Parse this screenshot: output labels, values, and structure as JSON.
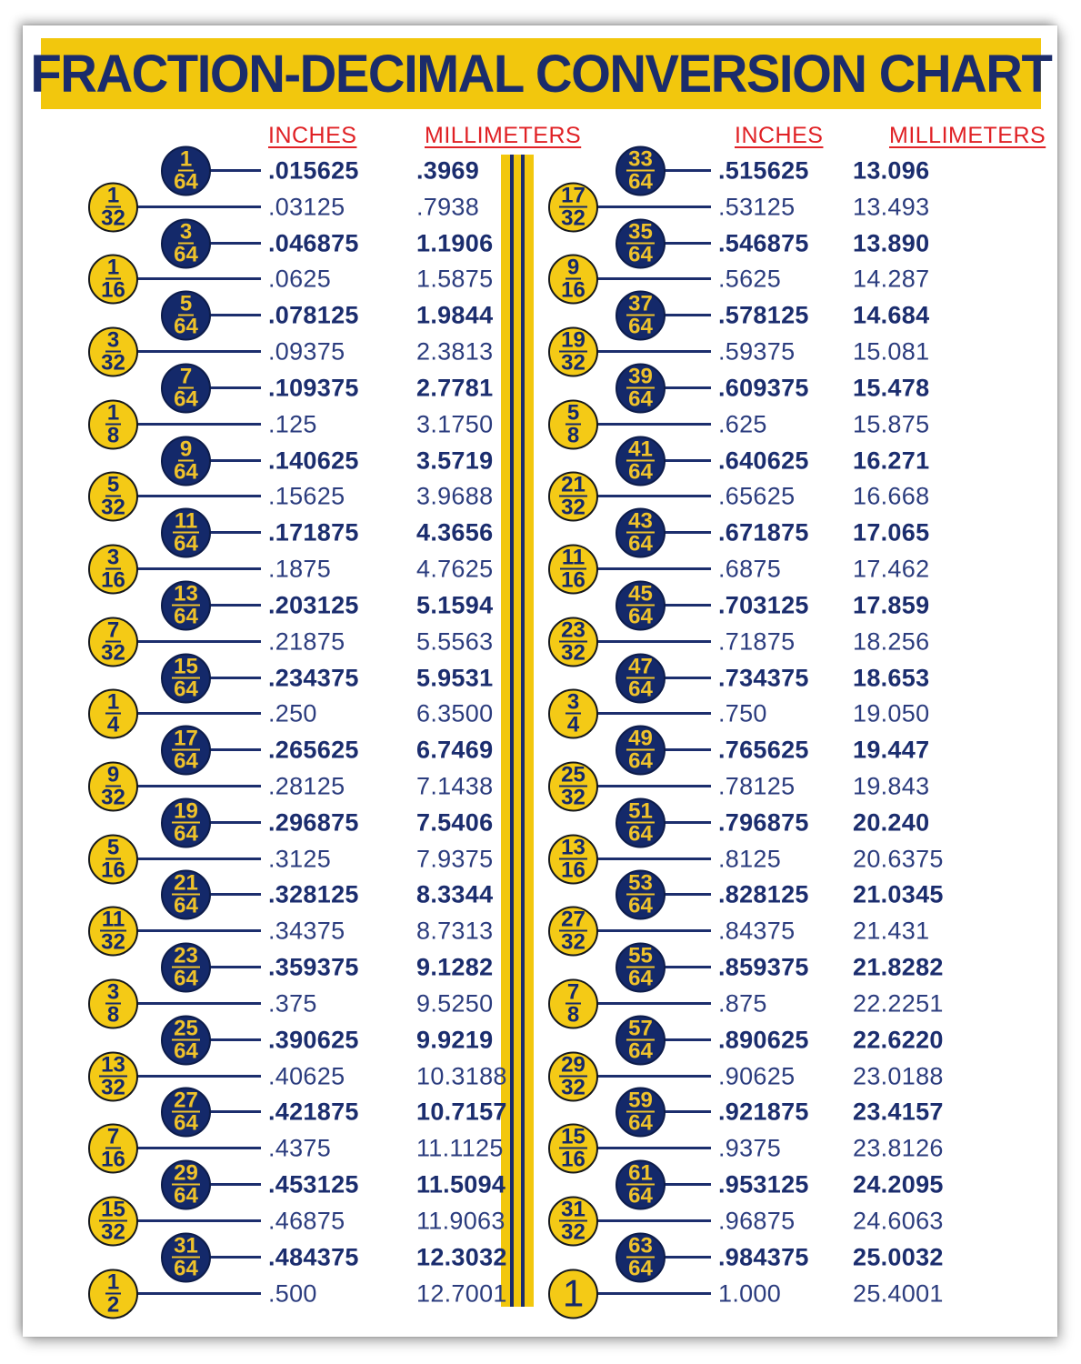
{
  "poster": {
    "title": "FRACTION-DECIMAL CONVERSION CHART"
  },
  "colors": {
    "banner_yellow": "#F2C70D",
    "circle_yellow": "#F4CA16",
    "circle_navy": "#14296A",
    "text_navy": "#1B2D6E",
    "header_red": "#E02125"
  },
  "chart_data": {
    "type": "table",
    "title": "FRACTION-DECIMAL CONVERSION CHART",
    "layout": "two columns of fraction-to-decimal rows separated by a yellow striped divider; 64th-fractions shown in navy circles with bold values, other fractions in yellow circles",
    "columns": [
      {
        "headers": {
          "inches": "INCHES",
          "millimeters": "MILLIMETERS"
        },
        "rows": [
          {
            "fraction": "1/64",
            "inches": ".015625",
            "mm": ".3969"
          },
          {
            "fraction": "1/32",
            "inches": ".03125",
            "mm": ".7938"
          },
          {
            "fraction": "3/64",
            "inches": ".046875",
            "mm": "1.1906"
          },
          {
            "fraction": "1/16",
            "inches": ".0625",
            "mm": "1.5875"
          },
          {
            "fraction": "5/64",
            "inches": ".078125",
            "mm": "1.9844"
          },
          {
            "fraction": "3/32",
            "inches": ".09375",
            "mm": "2.3813"
          },
          {
            "fraction": "7/64",
            "inches": ".109375",
            "mm": "2.7781"
          },
          {
            "fraction": "1/8",
            "inches": ".125",
            "mm": "3.1750"
          },
          {
            "fraction": "9/64",
            "inches": ".140625",
            "mm": "3.5719"
          },
          {
            "fraction": "5/32",
            "inches": ".15625",
            "mm": "3.9688"
          },
          {
            "fraction": "11/64",
            "inches": ".171875",
            "mm": "4.3656"
          },
          {
            "fraction": "3/16",
            "inches": ".1875",
            "mm": "4.7625"
          },
          {
            "fraction": "13/64",
            "inches": ".203125",
            "mm": "5.1594"
          },
          {
            "fraction": "7/32",
            "inches": ".21875",
            "mm": "5.5563"
          },
          {
            "fraction": "15/64",
            "inches": ".234375",
            "mm": "5.9531"
          },
          {
            "fraction": "1/4",
            "inches": ".250",
            "mm": "6.3500"
          },
          {
            "fraction": "17/64",
            "inches": ".265625",
            "mm": "6.7469"
          },
          {
            "fraction": "9/32",
            "inches": ".28125",
            "mm": "7.1438"
          },
          {
            "fraction": "19/64",
            "inches": ".296875",
            "mm": "7.5406"
          },
          {
            "fraction": "5/16",
            "inches": ".3125",
            "mm": "7.9375"
          },
          {
            "fraction": "21/64",
            "inches": ".328125",
            "mm": "8.3344"
          },
          {
            "fraction": "11/32",
            "inches": ".34375",
            "mm": "8.7313"
          },
          {
            "fraction": "23/64",
            "inches": ".359375",
            "mm": "9.1282"
          },
          {
            "fraction": "3/8",
            "inches": ".375",
            "mm": "9.5250"
          },
          {
            "fraction": "25/64",
            "inches": ".390625",
            "mm": "9.9219"
          },
          {
            "fraction": "13/32",
            "inches": ".40625",
            "mm": "10.3188"
          },
          {
            "fraction": "27/64",
            "inches": ".421875",
            "mm": "10.7157"
          },
          {
            "fraction": "7/16",
            "inches": ".4375",
            "mm": "11.1125"
          },
          {
            "fraction": "29/64",
            "inches": ".453125",
            "mm": "11.5094"
          },
          {
            "fraction": "15/32",
            "inches": ".46875",
            "mm": "11.9063"
          },
          {
            "fraction": "31/64",
            "inches": ".484375",
            "mm": "12.3032"
          },
          {
            "fraction": "1/2",
            "inches": ".500",
            "mm": "12.7001"
          }
        ]
      },
      {
        "headers": {
          "inches": "INCHES",
          "millimeters": "MILLIMETERS"
        },
        "rows": [
          {
            "fraction": "33/64",
            "inches": ".515625",
            "mm": "13.096"
          },
          {
            "fraction": "17/32",
            "inches": ".53125",
            "mm": "13.493"
          },
          {
            "fraction": "35/64",
            "inches": ".546875",
            "mm": "13.890"
          },
          {
            "fraction": "9/16",
            "inches": ".5625",
            "mm": "14.287"
          },
          {
            "fraction": "37/64",
            "inches": ".578125",
            "mm": "14.684"
          },
          {
            "fraction": "19/32",
            "inches": ".59375",
            "mm": "15.081"
          },
          {
            "fraction": "39/64",
            "inches": ".609375",
            "mm": "15.478"
          },
          {
            "fraction": "5/8",
            "inches": ".625",
            "mm": "15.875"
          },
          {
            "fraction": "41/64",
            "inches": ".640625",
            "mm": "16.271"
          },
          {
            "fraction": "21/32",
            "inches": ".65625",
            "mm": "16.668"
          },
          {
            "fraction": "43/64",
            "inches": ".671875",
            "mm": "17.065"
          },
          {
            "fraction": "11/16",
            "inches": ".6875",
            "mm": "17.462"
          },
          {
            "fraction": "45/64",
            "inches": ".703125",
            "mm": "17.859"
          },
          {
            "fraction": "23/32",
            "inches": ".71875",
            "mm": "18.256"
          },
          {
            "fraction": "47/64",
            "inches": ".734375",
            "mm": "18.653"
          },
          {
            "fraction": "3/4",
            "inches": ".750",
            "mm": "19.050"
          },
          {
            "fraction": "49/64",
            "inches": ".765625",
            "mm": "19.447"
          },
          {
            "fraction": "25/32",
            "inches": ".78125",
            "mm": "19.843"
          },
          {
            "fraction": "51/64",
            "inches": ".796875",
            "mm": "20.240"
          },
          {
            "fraction": "13/16",
            "inches": ".8125",
            "mm": "20.6375"
          },
          {
            "fraction": "53/64",
            "inches": ".828125",
            "mm": "21.0345"
          },
          {
            "fraction": "27/32",
            "inches": ".84375",
            "mm": "21.431"
          },
          {
            "fraction": "55/64",
            "inches": ".859375",
            "mm": "21.8282"
          },
          {
            "fraction": "7/8",
            "inches": ".875",
            "mm": "22.2251"
          },
          {
            "fraction": "57/64",
            "inches": ".890625",
            "mm": "22.6220"
          },
          {
            "fraction": "29/32",
            "inches": ".90625",
            "mm": "23.0188"
          },
          {
            "fraction": "59/64",
            "inches": ".921875",
            "mm": "23.4157"
          },
          {
            "fraction": "15/16",
            "inches": ".9375",
            "mm": "23.8126"
          },
          {
            "fraction": "61/64",
            "inches": ".953125",
            "mm": "24.2095"
          },
          {
            "fraction": "31/32",
            "inches": ".96875",
            "mm": "24.6063"
          },
          {
            "fraction": "63/64",
            "inches": ".984375",
            "mm": "25.0032"
          },
          {
            "fraction": "1",
            "inches": "1.000",
            "mm": "25.4001"
          }
        ]
      }
    ]
  }
}
